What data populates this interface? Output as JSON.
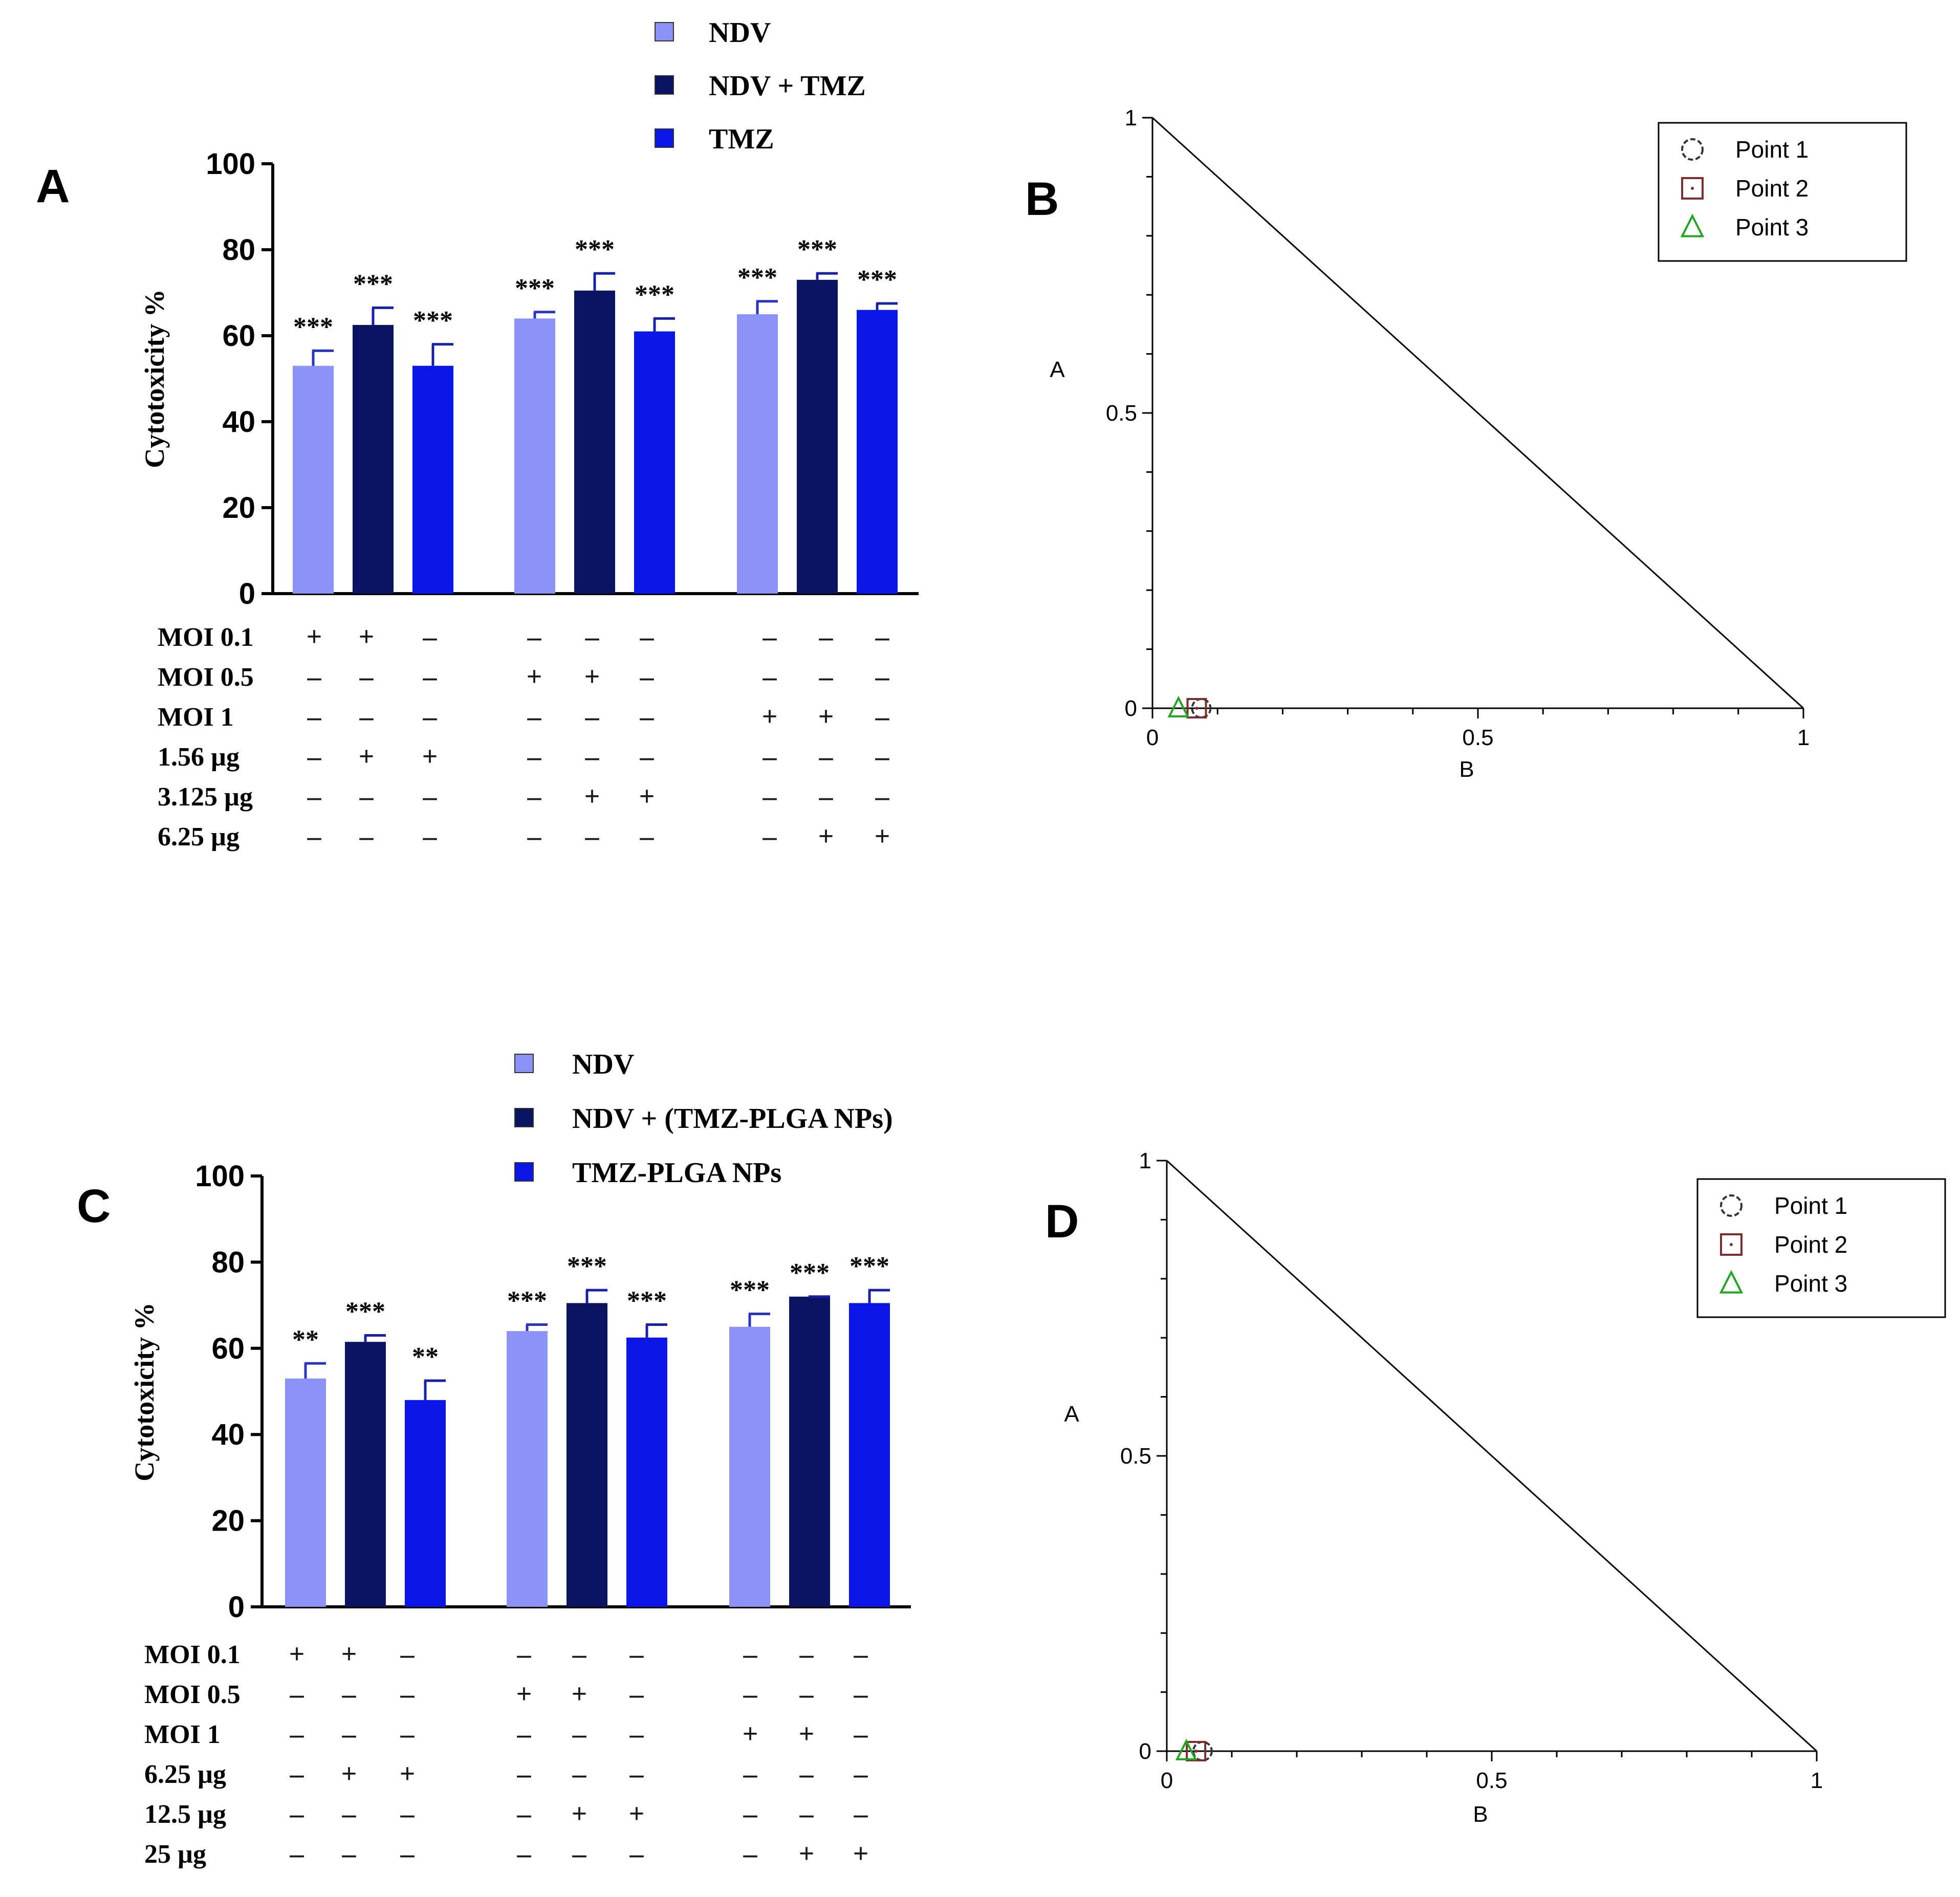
{
  "chart_data": [
    {
      "panel_label": "A",
      "type": "bar",
      "ylabel": "Cytotoxicity %",
      "ylim": [
        0,
        100
      ],
      "yticks": [
        "0",
        "20",
        "40",
        "60",
        "80",
        "100"
      ],
      "legend": [
        "NDV",
        "NDV + TMZ",
        "TMZ"
      ],
      "legend_placement": "top",
      "groups": 3,
      "series": [
        {
          "name": "NDV",
          "values": [
            53,
            64,
            65
          ],
          "errors": [
            3.5,
            1.5,
            3
          ],
          "sig": [
            "***",
            "***",
            "***"
          ],
          "color": "#8c93f6"
        },
        {
          "name": "NDV + TMZ",
          "values": [
            62.5,
            70.5,
            73
          ],
          "errors": [
            4,
            4,
            1.5
          ],
          "sig": [
            "***",
            "***",
            "***"
          ],
          "color": "#0b1460"
        },
        {
          "name": "TMZ",
          "values": [
            53,
            61,
            66
          ],
          "errors": [
            5,
            3,
            1.5
          ],
          "sig": [
            "***",
            "***",
            "***"
          ],
          "color": "#0a16e6"
        }
      ],
      "condition_rows": [
        {
          "label": "MOI 0.1",
          "values": [
            "+",
            "+",
            "–",
            "–",
            "–",
            "–",
            "–",
            "–",
            "–"
          ]
        },
        {
          "label": "MOI 0.5",
          "values": [
            "–",
            "–",
            "–",
            "+",
            "+",
            "–",
            "–",
            "–",
            "–"
          ]
        },
        {
          "label": "MOI 1",
          "values": [
            "–",
            "–",
            "–",
            "–",
            "–",
            "–",
            "+",
            "+",
            "–"
          ]
        },
        {
          "label": "1.56 µg",
          "values": [
            "–",
            "+",
            "+",
            "–",
            "–",
            "–",
            "–",
            "–",
            "–"
          ]
        },
        {
          "label": "3.125 µg",
          "values": [
            "–",
            "–",
            "–",
            "–",
            "+",
            "+",
            "–",
            "–",
            "–"
          ]
        },
        {
          "label": "6.25 µg",
          "values": [
            "–",
            "–",
            "–",
            "–",
            "–",
            "–",
            "–",
            "+",
            "+"
          ]
        }
      ]
    },
    {
      "panel_label": "B",
      "type": "scatter",
      "xlabel": "B",
      "ylabel": "A",
      "xlim": [
        0,
        1
      ],
      "ylim": [
        0,
        1
      ],
      "xticks": [
        "0",
        "0.5",
        "1"
      ],
      "yticks": [
        "0",
        "0.5",
        "1"
      ],
      "legend_placement": "top-right",
      "line": [
        [
          0,
          1
        ],
        [
          1,
          0
        ]
      ],
      "series": [
        {
          "name": "Point 1",
          "marker": "circle",
          "color": "#333333",
          "x": 0.075,
          "y": 0.0
        },
        {
          "name": "Point 2",
          "marker": "square",
          "color": "#7a2e2e",
          "x": 0.068,
          "y": 0.0
        },
        {
          "name": "Point 3",
          "marker": "triangle",
          "color": "#23a323",
          "x": 0.04,
          "y": 0.0
        }
      ]
    },
    {
      "panel_label": "C",
      "type": "bar",
      "ylabel": "Cytotoxicity %",
      "ylim": [
        0,
        100
      ],
      "yticks": [
        "0",
        "20",
        "40",
        "60",
        "80",
        "100"
      ],
      "legend": [
        "NDV",
        "NDV + (TMZ-PLGA NPs)",
        "TMZ-PLGA NPs"
      ],
      "legend_placement": "top",
      "groups": 3,
      "series": [
        {
          "name": "NDV",
          "values": [
            53,
            64,
            65
          ],
          "errors": [
            3.5,
            1.5,
            3
          ],
          "sig": [
            "**",
            "***",
            "***"
          ],
          "color": "#8c93f6"
        },
        {
          "name": "NDV + (TMZ-PLGA NPs)",
          "values": [
            61.5,
            70.5,
            72
          ],
          "errors": [
            1.5,
            3,
            0
          ],
          "sig": [
            "***",
            "***",
            "***"
          ],
          "color": "#0b1460"
        },
        {
          "name": "TMZ-PLGA NPs",
          "values": [
            48,
            62.5,
            70.5
          ],
          "errors": [
            4.5,
            3,
            3
          ],
          "sig": [
            "**",
            "***",
            "***"
          ],
          "color": "#0a16e6"
        }
      ],
      "condition_rows": [
        {
          "label": "MOI 0.1",
          "values": [
            "+",
            "+",
            "–",
            "–",
            "–",
            "–",
            "–",
            "–",
            "–"
          ]
        },
        {
          "label": "MOI 0.5",
          "values": [
            "–",
            "–",
            "–",
            "+",
            "+",
            "–",
            "–",
            "–",
            "–"
          ]
        },
        {
          "label": "MOI 1",
          "values": [
            "–",
            "–",
            "–",
            "–",
            "–",
            "–",
            "+",
            "+",
            "–"
          ]
        },
        {
          "label": "6.25 µg",
          "values": [
            "–",
            "+",
            "+",
            "–",
            "–",
            "–",
            "–",
            "–",
            "–"
          ]
        },
        {
          "label": "12.5 µg",
          "values": [
            "–",
            "–",
            "–",
            "–",
            "+",
            "+",
            "–",
            "–",
            "–"
          ]
        },
        {
          "label": "25 µg",
          "values": [
            "–",
            "–",
            "–",
            "–",
            "–",
            "–",
            "–",
            "+",
            "+"
          ]
        }
      ]
    },
    {
      "panel_label": "D",
      "type": "scatter",
      "xlabel": "B",
      "ylabel": "A",
      "xlim": [
        0,
        1
      ],
      "ylim": [
        0,
        1
      ],
      "xticks": [
        "0",
        "0.5",
        "1"
      ],
      "yticks": [
        "0",
        "0.5",
        "1"
      ],
      "legend_placement": "top-right",
      "line": [
        [
          0,
          1
        ],
        [
          1,
          0
        ]
      ],
      "series": [
        {
          "name": "Point 1",
          "marker": "circle",
          "color": "#333333",
          "x": 0.055,
          "y": 0.0
        },
        {
          "name": "Point 2",
          "marker": "square",
          "color": "#7a2e2e",
          "x": 0.045,
          "y": 0.0
        },
        {
          "name": "Point 3",
          "marker": "triangle",
          "color": "#23a323",
          "x": 0.03,
          "y": 0.0
        }
      ]
    }
  ]
}
